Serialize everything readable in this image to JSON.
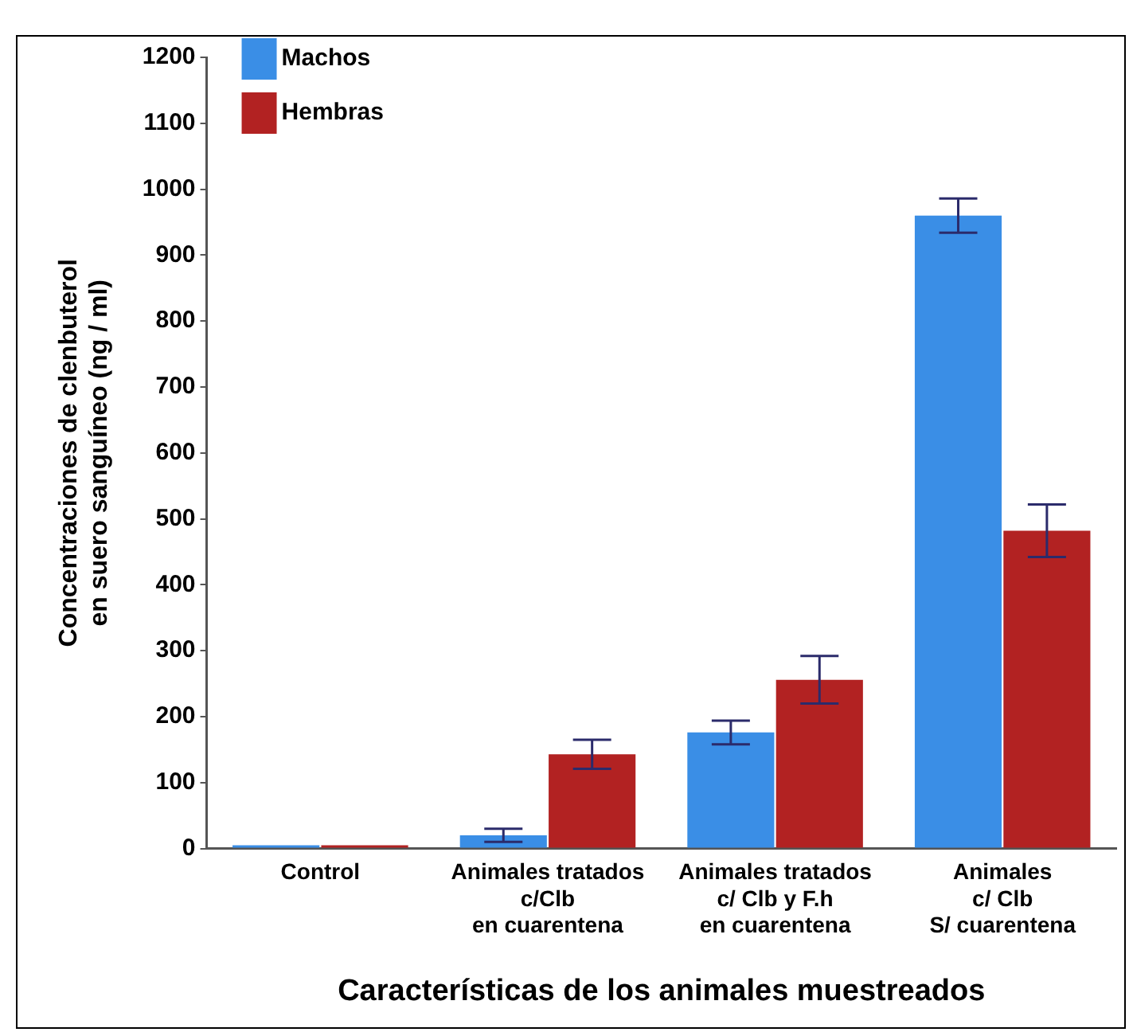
{
  "chart_data": {
    "type": "bar",
    "xlabel": "Características de los animales muestreados",
    "ylabel": "Concentraciones de clenbuterol\nen suero sanguíneo (ng / ml)",
    "categories": [
      "Control",
      "Animales tratados\nc/Clb\nen cuarentena",
      "Animales tratados\nc/ Clb y F.h\nen cuarentena",
      "Animales\nc/ Clb\nS/ cuarentena"
    ],
    "series": [
      {
        "name": "Machos",
        "color": "#3a8ee6",
        "values": [
          5,
          20,
          176,
          960
        ],
        "errors": [
          null,
          10,
          18,
          26
        ]
      },
      {
        "name": "Hembras",
        "color": "#b22222",
        "values": [
          5,
          143,
          256,
          482
        ],
        "errors": [
          null,
          22,
          36,
          40
        ]
      }
    ],
    "ylim": [
      0,
      1200
    ],
    "yticks": [
      0,
      100,
      200,
      300,
      400,
      500,
      600,
      700,
      800,
      900,
      1000,
      1100,
      1200
    ],
    "grid": false,
    "legend": "top left"
  }
}
